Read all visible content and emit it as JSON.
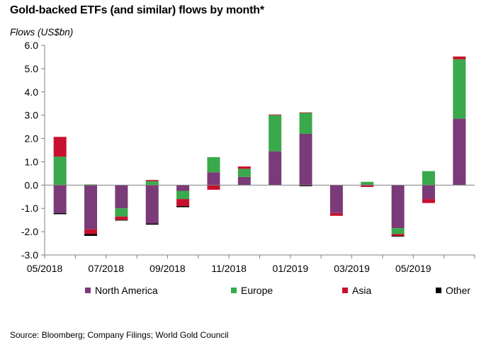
{
  "title": "Gold-backed ETFs (and similar) flows by month*",
  "ylabel": "Flows (US$bn)",
  "source": "Source: Bloomberg; Company Filings; World Gold Council",
  "colors": {
    "north_america": "#7b3a78",
    "europe": "#39a94b",
    "asia": "#c8102e",
    "other": "#000000"
  },
  "legend": [
    {
      "label": "North America",
      "color": "#7b3a78"
    },
    {
      "label": "Europe",
      "color": "#39a94b"
    },
    {
      "label": "Asia",
      "color": "#c8102e"
    },
    {
      "label": "Other",
      "color": "#000000"
    }
  ],
  "chart_data": {
    "type": "bar",
    "stacked": true,
    "title": "Gold-backed ETFs (and similar) flows by month*",
    "ylabel": "Flows (US$bn)",
    "ylim": [
      -3.0,
      6.0
    ],
    "yticks": [
      "-3.0",
      "-2.0",
      "-1.0",
      "0.0",
      "1.0",
      "2.0",
      "3.0",
      "4.0",
      "5.0",
      "6.0"
    ],
    "categories": [
      "05/2018",
      "06/2018",
      "07/2018",
      "08/2018",
      "09/2018",
      "10/2018",
      "11/2018",
      "12/2018",
      "01/2019",
      "02/2019",
      "03/2019",
      "04/2019",
      "05/2019",
      "06/2019"
    ],
    "xtick_labels": [
      "05/2018",
      "07/2018",
      "09/2018",
      "11/2018",
      "01/2019",
      "03/2019",
      "05/2019"
    ],
    "series": [
      {
        "name": "North America",
        "values": [
          -1.2,
          -1.9,
          -1.0,
          -1.65,
          -0.25,
          0.55,
          0.35,
          1.45,
          2.2,
          -1.2,
          0.02,
          -1.85,
          -0.6,
          2.85
        ]
      },
      {
        "name": "Europe",
        "values": [
          1.22,
          0.03,
          -0.35,
          0.17,
          -0.35,
          0.65,
          0.35,
          1.55,
          0.9,
          0.0,
          0.12,
          -0.25,
          0.6,
          2.55
        ]
      },
      {
        "name": "Asia",
        "values": [
          0.85,
          -0.2,
          -0.15,
          0.05,
          -0.3,
          -0.2,
          0.1,
          0.03,
          0.02,
          -0.12,
          -0.08,
          -0.08,
          -0.17,
          0.12
        ]
      },
      {
        "name": "Other",
        "values": [
          -0.05,
          -0.08,
          -0.02,
          -0.05,
          -0.05,
          0.0,
          0.0,
          0.0,
          -0.05,
          0.0,
          0.0,
          -0.03,
          0.0,
          0.0
        ]
      }
    ],
    "grid": false,
    "legend_position": "bottom"
  }
}
